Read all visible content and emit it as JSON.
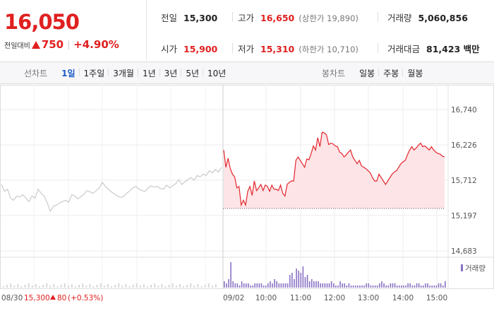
{
  "quote": {
    "current_price": "16,050",
    "change_label": "전일대비",
    "change_value": "750",
    "change_percent": "+4.90%",
    "direction": "up",
    "up_color": "#e02020"
  },
  "stats": {
    "prev_close": {
      "label": "전일",
      "value": "15,300"
    },
    "high": {
      "label": "고가",
      "value": "16,650",
      "sub": "(상한가 19,890)"
    },
    "volume": {
      "label": "거래량",
      "value": "5,060,856"
    },
    "open": {
      "label": "시가",
      "value": "15,900"
    },
    "low": {
      "label": "저가",
      "value": "15,310",
      "sub": "(하한가 10,710)"
    },
    "trade_value": {
      "label": "거래대금",
      "value": "81,423 백만"
    }
  },
  "tabs": {
    "line_title": "선차트",
    "line": [
      "1일",
      "1주일",
      "3개월",
      "1년",
      "3년",
      "5년",
      "10년"
    ],
    "line_active": "1일",
    "candle_title": "봉차트",
    "candle": [
      "일봉",
      "주봉",
      "월봉"
    ]
  },
  "chart_data": {
    "type": "line",
    "ylim": [
      14683,
      16740
    ],
    "y_ticks": [
      "16,740",
      "16,226",
      "15,712",
      "15,197",
      "14,683"
    ],
    "x_ticks": [
      "09/02",
      "10:00",
      "11:00",
      "12:00",
      "13:00",
      "14:00",
      "15:00"
    ],
    "prev_close": 15300,
    "legend_volume": "거래량",
    "prev_day_label": {
      "date": "08/30",
      "price": "15,300",
      "change": "80",
      "pct": "(+0.53%)"
    },
    "series": [
      {
        "values": [
          15650,
          15550,
          15580,
          15450,
          15420,
          15480,
          15470,
          15500,
          15450,
          15400,
          15480,
          15450,
          15580,
          15520,
          15480,
          15380,
          15260,
          15330,
          15350,
          15380,
          15400,
          15420,
          15390,
          15500,
          15480,
          15440,
          15470,
          15510,
          15560,
          15540,
          15520,
          15560,
          15600,
          15680,
          15620,
          15580,
          15540,
          15510,
          15480,
          15460,
          15480,
          15520,
          15560,
          15600,
          15620,
          15580,
          15560,
          15550,
          15600,
          15630,
          15610,
          15620,
          15590,
          15580,
          15640,
          15600,
          15630,
          15660,
          15720,
          15650,
          15690,
          15720,
          15750,
          15710,
          15780,
          15760,
          15800,
          15780,
          15850,
          15820,
          15870,
          15830,
          15900
        ]
      },
      {
        "values": [
          16150,
          15900,
          16030,
          15880,
          15800,
          15760,
          15600,
          15620,
          15350,
          15420,
          15350,
          15550,
          15620,
          15490,
          15700,
          15560,
          15600,
          15650,
          15560,
          15640,
          15620,
          15550,
          15640,
          15580,
          15580,
          15560,
          15640,
          15520,
          15480,
          15650,
          15680,
          15700,
          15700,
          16000,
          16050,
          16000,
          15950,
          15900,
          16020,
          16010,
          16100,
          16210,
          16150,
          16330,
          16200,
          16410,
          16400,
          16370,
          16230,
          16250,
          16240,
          16210,
          16200,
          16120,
          16100,
          16050,
          16080,
          16120,
          16150,
          16050,
          16000,
          15950,
          16000,
          15920,
          15900,
          15880,
          15850,
          15820,
          15750,
          15700,
          15700,
          15800,
          15750,
          15700,
          15650,
          15700,
          15750,
          15800,
          15830,
          15850,
          15900,
          15950,
          15980,
          16000,
          16080,
          16150,
          16200,
          16150,
          16180,
          16220,
          16250,
          16200,
          16210,
          16180,
          16150,
          16200,
          16150,
          16120,
          16100,
          16090,
          16060,
          16050
        ]
      }
    ],
    "volume": [
      3,
      2,
      4,
      12,
      3,
      2,
      2,
      1,
      3,
      2,
      2,
      2,
      1,
      1,
      2,
      2,
      2,
      2,
      1,
      1,
      2,
      3,
      2,
      4,
      3,
      2,
      2,
      2,
      2,
      2,
      6,
      7,
      4,
      9,
      8,
      7,
      10,
      5,
      6,
      3,
      4,
      3,
      3,
      3,
      2,
      2,
      2,
      2,
      2,
      3,
      2,
      1,
      1,
      3,
      2,
      2,
      1,
      2,
      1,
      1,
      1,
      1,
      1,
      1,
      1,
      2,
      2,
      1,
      1,
      1,
      1,
      2,
      3,
      2,
      1,
      1,
      2,
      2,
      2,
      1,
      1,
      1,
      1,
      1,
      2,
      2,
      1,
      1,
      2,
      2,
      1,
      1,
      2,
      2,
      1,
      1,
      1,
      1,
      2,
      2,
      1,
      3
    ]
  }
}
